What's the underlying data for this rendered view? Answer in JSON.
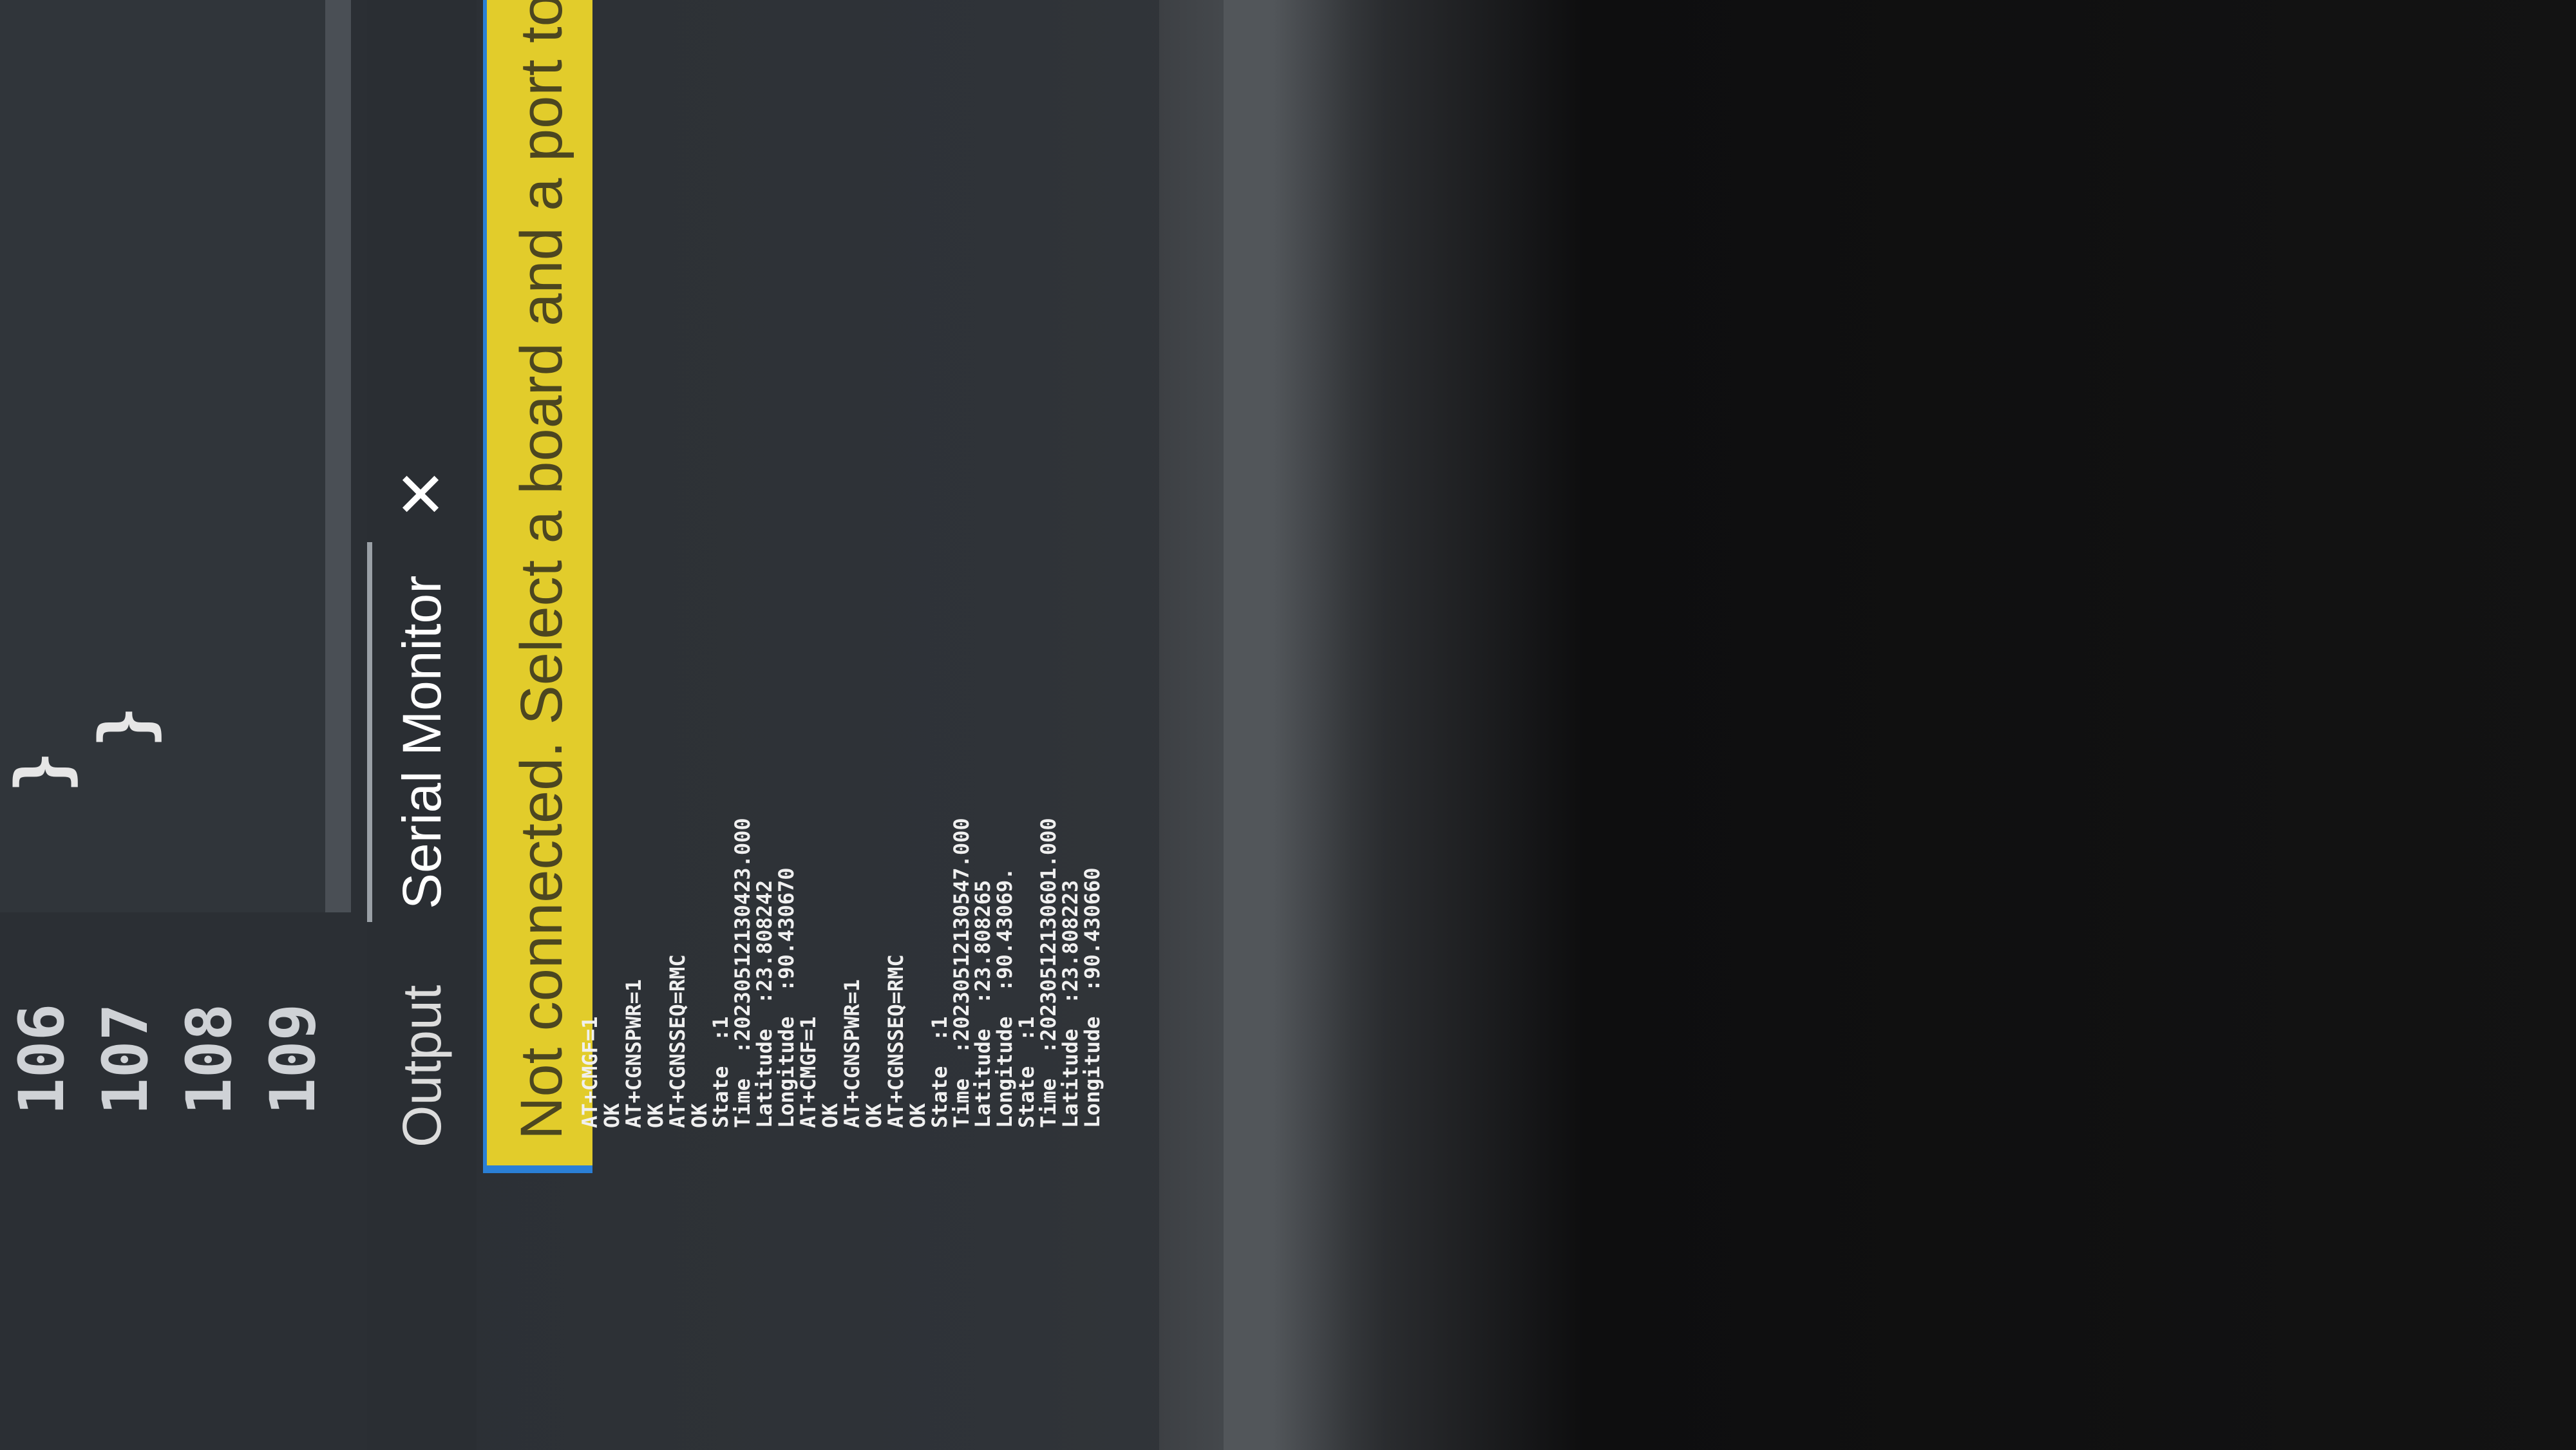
{
  "editor": {
    "line_numbers": [
      "106",
      "107",
      "108",
      "109"
    ],
    "code_lines": [
      "}",
      "}"
    ]
  },
  "panel": {
    "tabs": [
      {
        "label": "Output"
      },
      {
        "label": "Serial Monitor"
      }
    ],
    "close_icon": "close-icon"
  },
  "notification": {
    "text": "Not connected. Select a board and a port to connect au"
  },
  "serial": {
    "lines": [
      "AT+CMGF=1",
      "OK",
      "AT+CGNSPWR=1",
      "OK",
      "AT+CGNSSEQ=RMC",
      "OK",
      "State  :1",
      "Time  :20230512130423.000",
      "Latitude  :23.808242",
      "Longitude  :90.430670",
      "AT+CMGF=1",
      "OK",
      "AT+CGNSPWR=1",
      "OK",
      "AT+CGNSSEQ=RMC",
      "OK",
      "State  :1",
      "Time  :20230512130547.000",
      "Latitude  :23.808265",
      "Longitude  :90.43069.",
      "State  :1",
      "Time  :20230512130601.000",
      "Latitude  :23.808223",
      "Longitude  :90.430660"
    ]
  },
  "colors": {
    "notice_bg": "#e2cc2b",
    "notice_border": "#2a7fd6",
    "panel_bg": "#2a2e33"
  }
}
